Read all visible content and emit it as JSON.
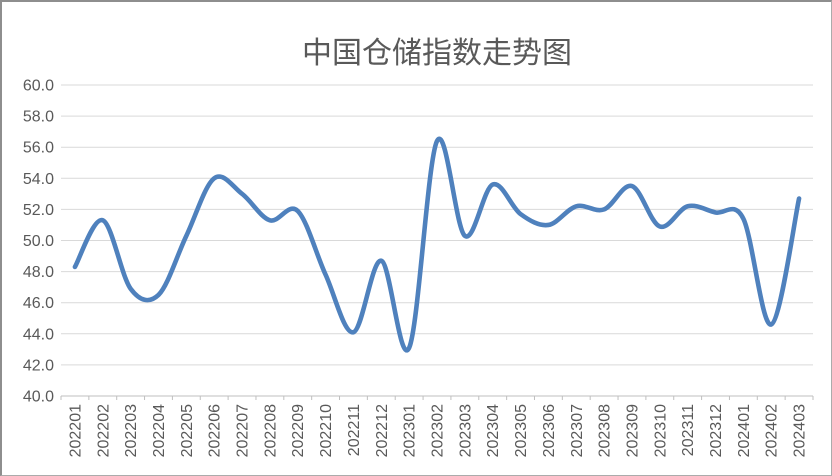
{
  "window": {
    "background": "#ffffff",
    "border_color": "#8e8e8e"
  },
  "chart_data": {
    "type": "line",
    "title": "中国仓储指数走势图",
    "categories": [
      "202201",
      "202202",
      "202203",
      "202204",
      "202205",
      "202206",
      "202207",
      "202208",
      "202209",
      "202210",
      "202211",
      "202212",
      "202301",
      "202302",
      "202303",
      "202304",
      "202305",
      "202306",
      "202307",
      "202308",
      "202309",
      "202310",
      "202311",
      "202312",
      "202401",
      "202402",
      "202403"
    ],
    "values": [
      48.3,
      51.3,
      46.9,
      46.5,
      50.3,
      54.0,
      53.0,
      51.3,
      51.9,
      47.8,
      44.1,
      48.7,
      43.1,
      56.4,
      50.3,
      53.6,
      51.7,
      51.0,
      52.2,
      52.0,
      53.5,
      50.9,
      52.2,
      51.8,
      51.4,
      44.6,
      52.7
    ],
    "xlabel": "",
    "ylabel": "",
    "ylim": [
      40.0,
      60.0
    ],
    "ytick_step": 2.0,
    "ytick_labels": [
      "40.0",
      "42.0",
      "44.0",
      "46.0",
      "48.0",
      "50.0",
      "52.0",
      "54.0",
      "56.0",
      "58.0",
      "60.0"
    ],
    "grid": true,
    "legend_position": "none",
    "line_smooth": true,
    "line_color": "#4F81BD",
    "gridline_color": "#D9D9D9",
    "axis_color": "#BFBFBF",
    "label_color": "#595959",
    "title_color": "#595959"
  }
}
